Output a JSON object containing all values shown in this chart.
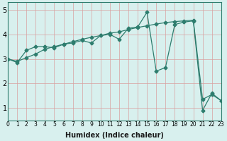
{
  "line1_x": [
    0,
    1,
    2,
    3,
    4,
    5,
    6,
    7,
    8,
    9,
    10,
    11,
    12,
    13,
    14,
    15,
    16,
    17,
    18,
    19,
    20,
    21,
    22,
    23
  ],
  "line1_y": [
    3.0,
    2.85,
    3.35,
    3.5,
    3.5,
    3.45,
    3.6,
    3.65,
    3.75,
    3.65,
    3.95,
    4.0,
    3.8,
    4.25,
    4.3,
    4.9,
    2.5,
    2.65,
    4.4,
    4.5,
    4.55,
    0.9,
    1.6,
    1.3
  ],
  "line2_x": [
    0,
    1,
    2,
    3,
    4,
    5,
    6,
    7,
    8,
    9,
    10,
    11,
    12,
    13,
    14,
    15,
    16,
    17,
    18,
    19,
    20,
    21,
    22,
    23
  ],
  "line2_y": [
    3.0,
    2.9,
    3.05,
    3.2,
    3.4,
    3.5,
    3.6,
    3.7,
    3.8,
    3.88,
    3.95,
    4.05,
    4.1,
    4.2,
    4.28,
    4.35,
    4.42,
    4.48,
    4.52,
    4.55,
    4.58,
    1.35,
    1.55,
    1.3
  ],
  "line_color": "#2e7d6e",
  "bg_color": "#d8f0ee",
  "grid_color_major": "#c0dede",
  "grid_color_minor": "#e8f8f8",
  "xlabel": "Humidex (Indice chaleur)",
  "xlim": [
    0,
    23
  ],
  "ylim": [
    0.5,
    5.3
  ],
  "yticks": [
    1,
    2,
    3,
    4,
    5
  ],
  "xticks": [
    0,
    1,
    2,
    3,
    4,
    5,
    6,
    7,
    8,
    9,
    10,
    11,
    12,
    13,
    14,
    15,
    16,
    17,
    18,
    19,
    20,
    21,
    22,
    23
  ],
  "marker": "D",
  "markersize": 2.5,
  "linewidth": 0.9,
  "xlabel_fontsize": 7,
  "tick_fontsize": 5.5,
  "ytick_fontsize": 7
}
